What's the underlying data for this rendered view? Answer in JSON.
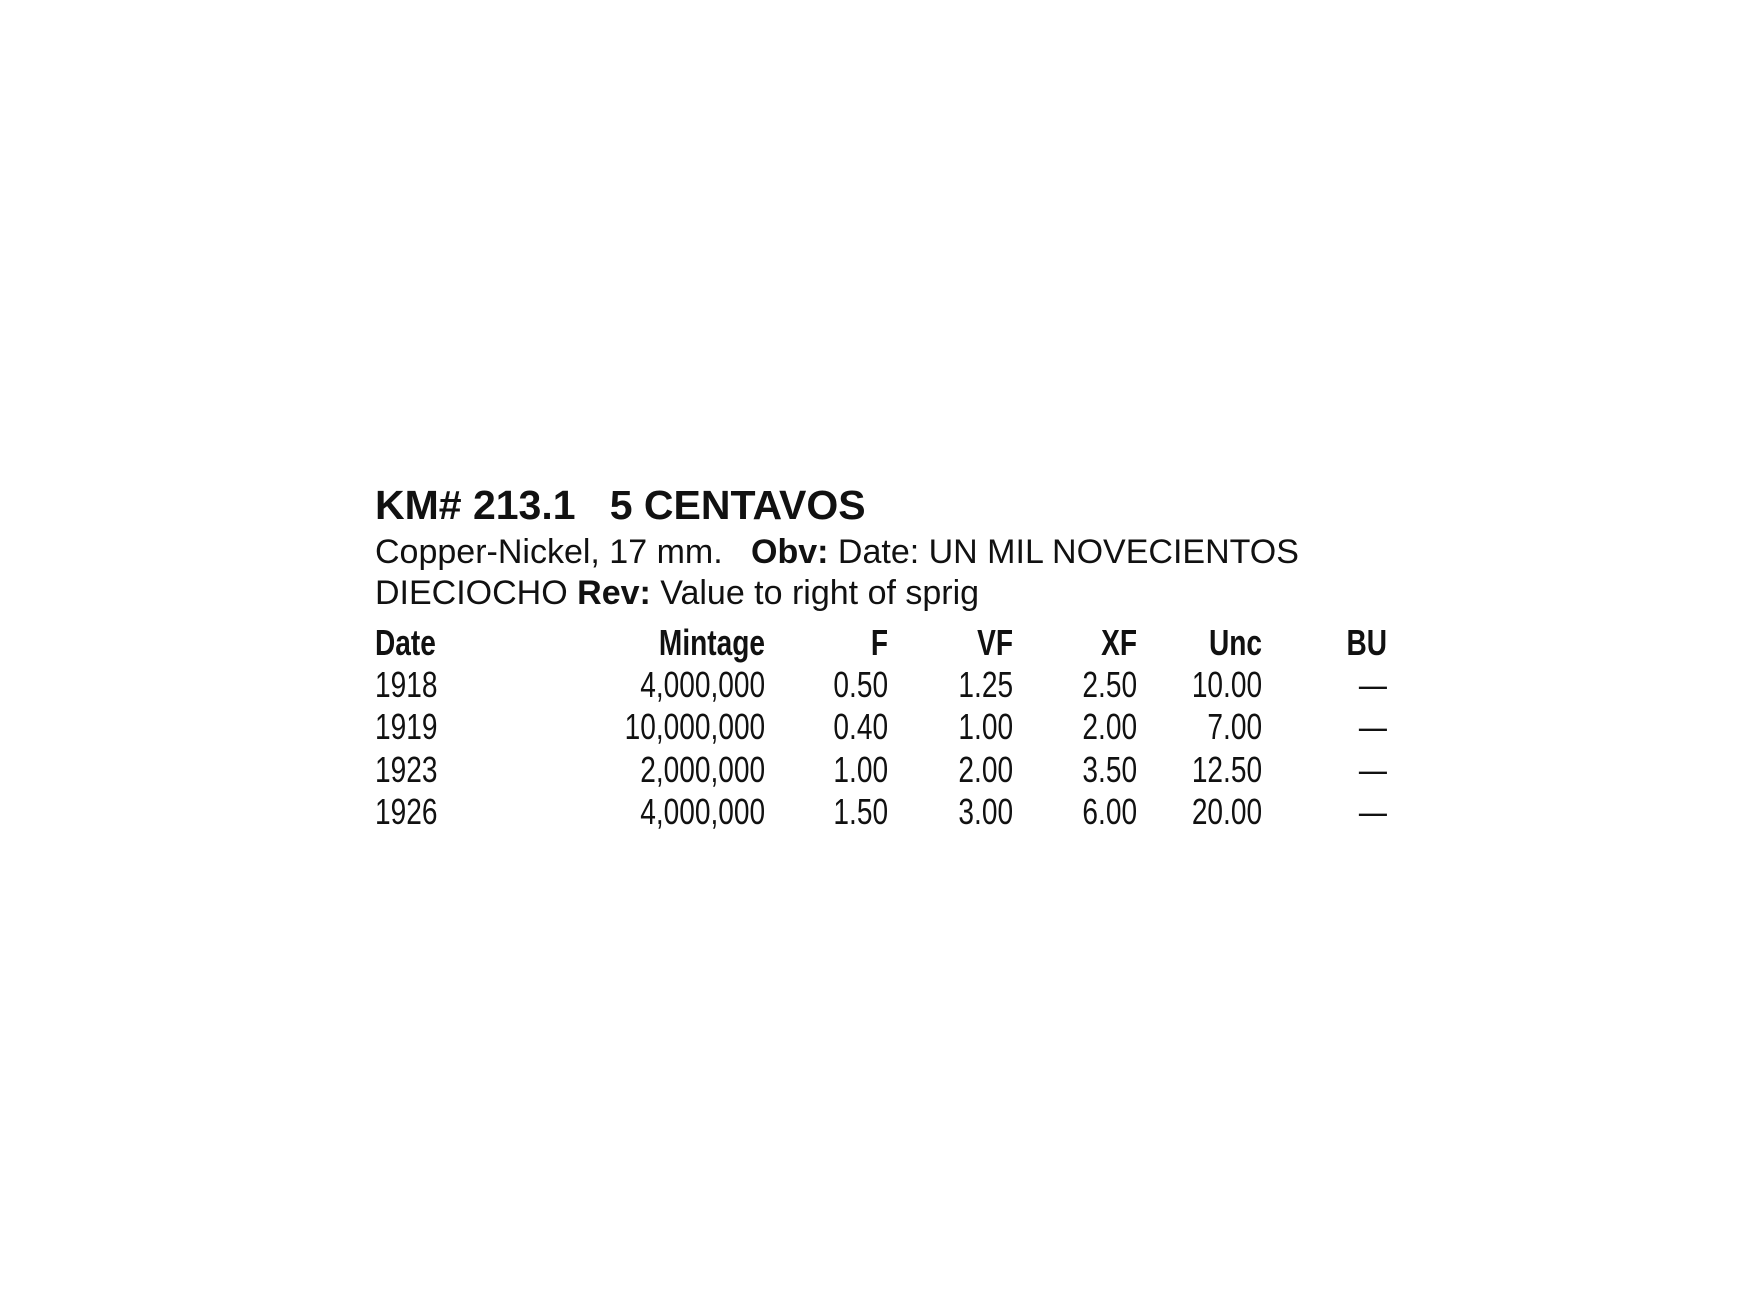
{
  "title": "KM# 213.1   5 CENTAVOS",
  "description": {
    "metal": "Copper-Nickel, 17 mm.",
    "obv_label": "Obv:",
    "obv_text": "Date: UN MIL NOVECIENTOS",
    "obv_text_cont": "DIECIOCHO",
    "rev_label": "Rev:",
    "rev_text": "Value to right of sprig"
  },
  "table": {
    "headers": [
      "Date",
      "Mintage",
      "F",
      "VF",
      "XF",
      "Unc",
      "BU"
    ],
    "rows": [
      [
        "1918",
        "4,000,000",
        "0.50",
        "1.25",
        "2.50",
        "10.00",
        "—"
      ],
      [
        "1919",
        "10,000,000",
        "0.40",
        "1.00",
        "2.00",
        "7.00",
        "—"
      ],
      [
        "1923",
        "2,000,000",
        "1.00",
        "2.00",
        "3.50",
        "12.50",
        "—"
      ],
      [
        "1926",
        "4,000,000",
        "1.50",
        "3.00",
        "6.00",
        "20.00",
        "—"
      ]
    ]
  }
}
